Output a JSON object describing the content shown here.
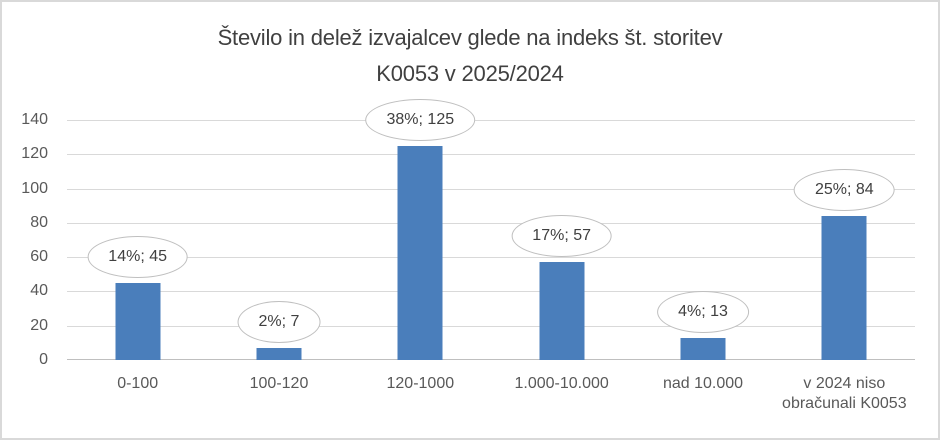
{
  "window": {
    "background_color": "#ffffff",
    "border_color": "#d9d9d9"
  },
  "chart_data": {
    "type": "bar",
    "title_line1": "Število in delež izvajalcev glede na indeks št. storitev",
    "title_line2": "K0053 v 2025/2024",
    "categories": [
      "0-100",
      "100-120",
      "120-1000",
      "1.000-10.000",
      "nad 10.000",
      "v 2024 niso obračunali K0053"
    ],
    "values": [
      45,
      7,
      125,
      57,
      13,
      84
    ],
    "percentages": [
      14,
      2,
      38,
      17,
      4,
      25
    ],
    "data_labels": [
      "14%; 45",
      "2%; 7",
      "38%; 125",
      "17%; 57",
      "4%; 13",
      "25%; 84"
    ],
    "xlabel": "",
    "ylabel": "",
    "ylim": [
      0,
      140
    ],
    "yticks": [
      0,
      20,
      40,
      60,
      80,
      100,
      120,
      140
    ],
    "grid": true,
    "legend": "none",
    "data_label_style": "oval-callout",
    "bar_color": "#4a7ebb",
    "gridline_color": "#d9d9d9",
    "axis_line_color": "#bfbfbf",
    "callout_border_color": "#bfbfbf",
    "callout_fill_color": "#ffffff",
    "tick_text_color": "#595959",
    "title_text_color": "#404040"
  }
}
